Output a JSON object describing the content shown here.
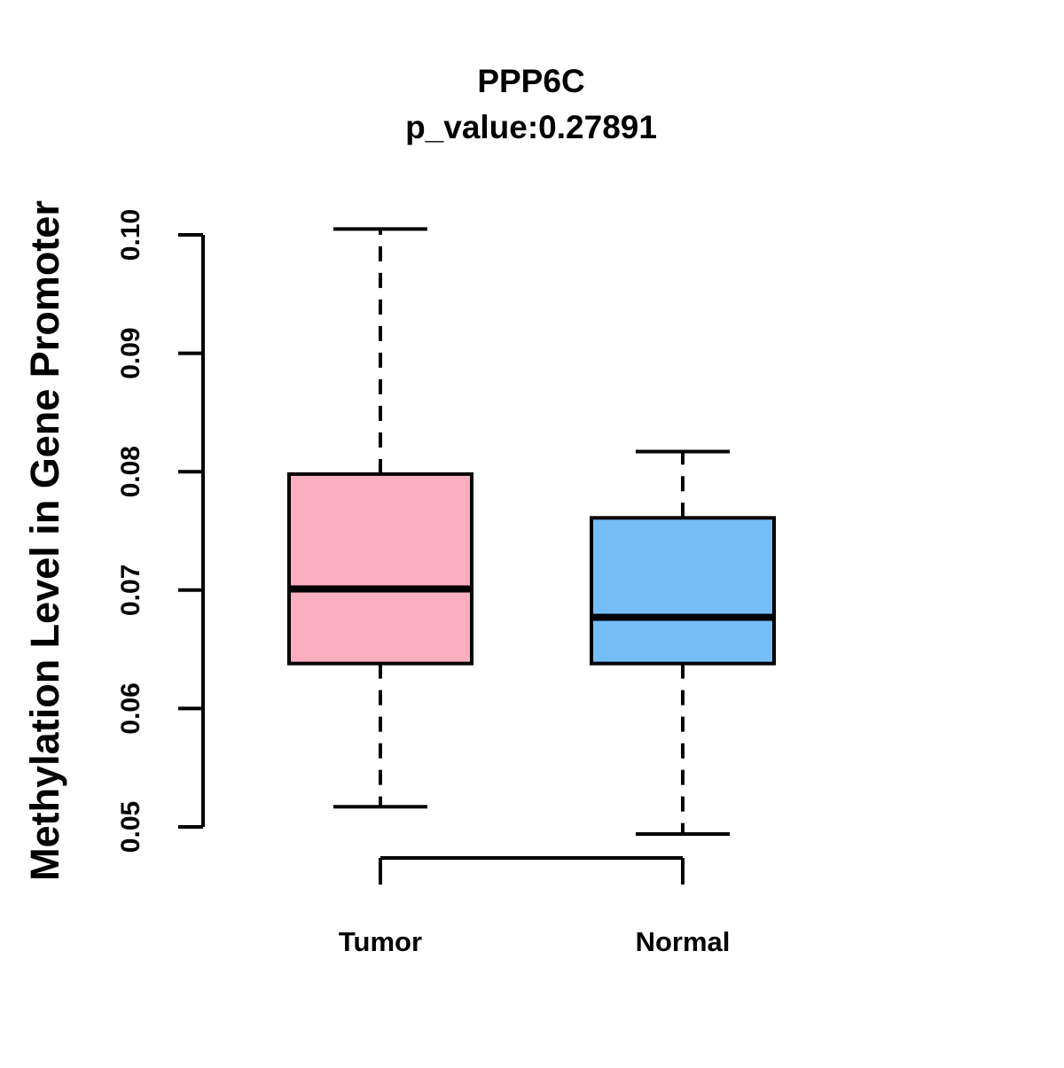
{
  "chart_data": {
    "type": "boxplot",
    "title": "PPP6C",
    "subtitle": "p_value:0.27891",
    "ylabel": "Methylation Level in Gene Promoter",
    "xlabel": "",
    "ylim": [
      0.05,
      0.1
    ],
    "ytick_labels": [
      "0.05",
      "0.06",
      "0.07",
      "0.08",
      "0.09",
      "0.10"
    ],
    "categories": [
      "Tumor",
      "Normal"
    ],
    "series": [
      {
        "name": "Tumor",
        "color": "#FCAEC1",
        "whisker_low": 0.0517,
        "q1": 0.0638,
        "median": 0.0701,
        "q3": 0.0798,
        "whisker_high": 0.1005
      },
      {
        "name": "Normal",
        "color": "#75BDF7",
        "whisker_low": 0.0494,
        "q1": 0.0638,
        "median": 0.0677,
        "q3": 0.0761,
        "whisker_high": 0.0817
      }
    ],
    "grid": false,
    "legend": false,
    "colors": {
      "box_border": "#000000",
      "median_line": "#000000",
      "axis": "#000000",
      "background": "#FFFFFF"
    }
  }
}
